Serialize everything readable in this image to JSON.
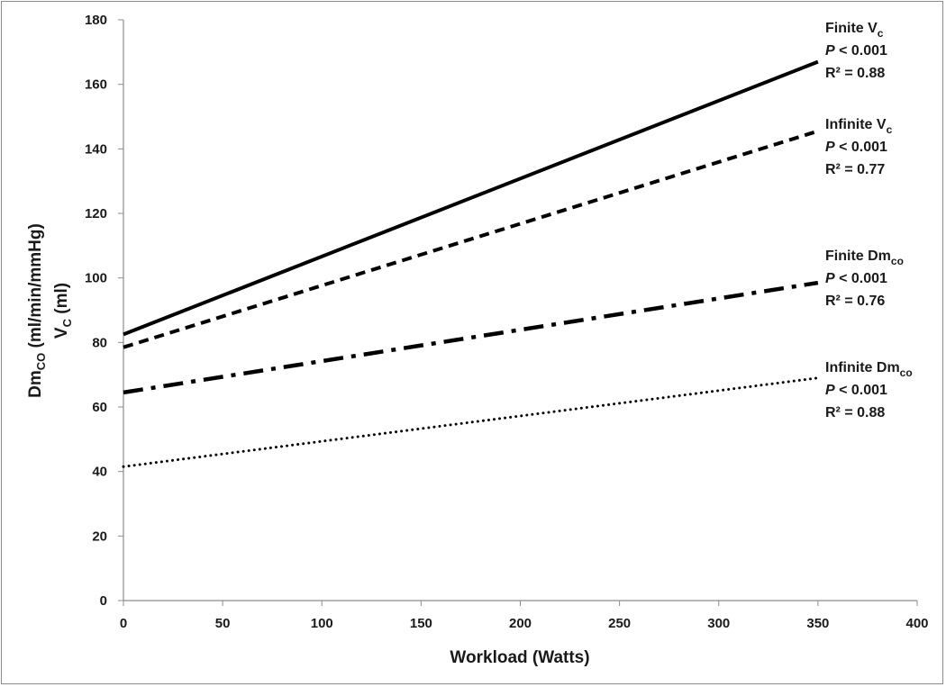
{
  "chart_data": {
    "type": "line",
    "x": [
      0,
      350
    ],
    "xlabel": "Workload (Watts)",
    "ylabel": {
      "line1": {
        "base": "Dm",
        "sub": "CO",
        "rest": " (ml/min/mmHg)"
      },
      "line2": {
        "base": "V",
        "sub": "C",
        "rest": " (ml)"
      }
    },
    "xlim": [
      0,
      400
    ],
    "ylim": [
      0,
      180
    ],
    "xticks": [
      0,
      50,
      100,
      150,
      200,
      250,
      300,
      350,
      400
    ],
    "yticks": [
      0,
      20,
      40,
      60,
      80,
      100,
      120,
      140,
      160,
      180
    ],
    "grid": false,
    "series": [
      {
        "name": "Finite Vc",
        "label": {
          "base": "Finite V",
          "sub": "c"
        },
        "p_prefix": "P",
        "p_text": " < 0.001",
        "r2_text": "R² = 0.88",
        "style": "solid",
        "color": "#000000",
        "values": [
          82.5,
          167
        ]
      },
      {
        "name": "Infinite Vc",
        "label": {
          "base": "Infinite V",
          "sub": "c"
        },
        "p_prefix": "P",
        "p_text": " < 0.001",
        "r2_text": "R² = 0.77",
        "style": "dashed",
        "color": "#000000",
        "values": [
          78.5,
          145.5
        ]
      },
      {
        "name": "Finite Dmco",
        "label": {
          "base": "Finite Dm",
          "sub": "co"
        },
        "p_prefix": "P",
        "p_text": " < 0.001",
        "r2_text": "R² = 0.76",
        "style": "dash-dot",
        "color": "#000000",
        "values": [
          64.5,
          98.5
        ]
      },
      {
        "name": "Infinite Dmco",
        "label": {
          "base": "Infinite Dm",
          "sub": "co"
        },
        "p_prefix": "P",
        "p_text": " < 0.001",
        "r2_text": "R² = 0.88",
        "style": "dotted",
        "color": "#000000",
        "values": [
          41.5,
          69
        ]
      }
    ]
  }
}
